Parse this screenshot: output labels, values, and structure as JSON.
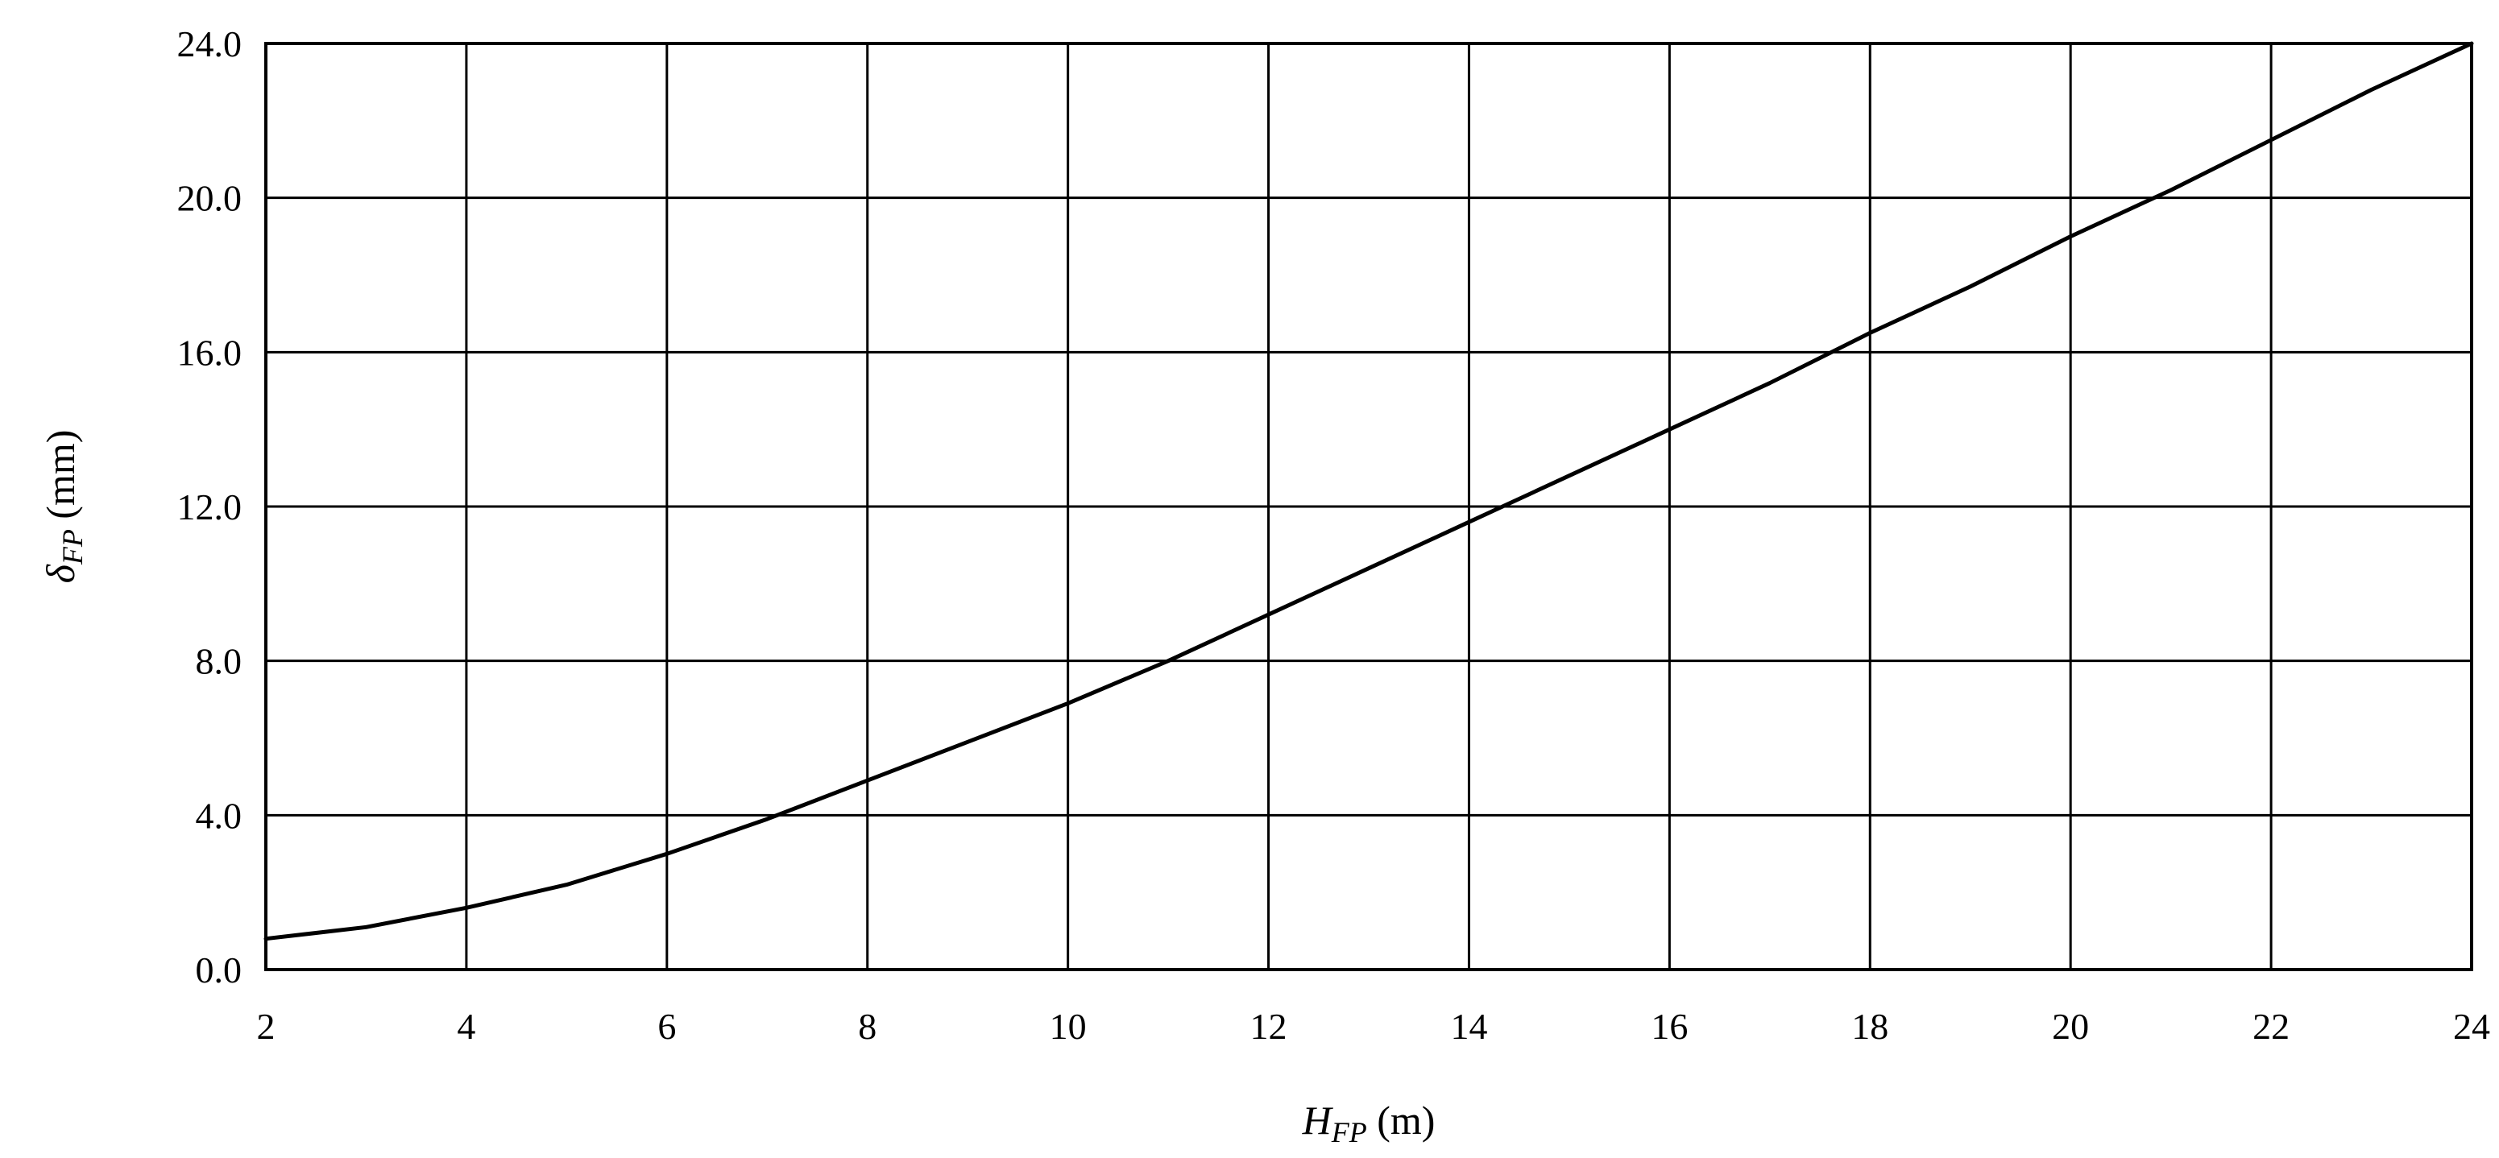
{
  "chart_data": {
    "type": "line",
    "title": "",
    "xlabel": {
      "main": "H",
      "sub": "FP",
      "unit": " (m)"
    },
    "ylabel": {
      "main": "δ",
      "sub": "FP",
      "unit": "  (mm)"
    },
    "xlim": [
      2,
      24
    ],
    "ylim": [
      0,
      24
    ],
    "x_ticks": [
      "2",
      "4",
      "6",
      "8",
      "10",
      "12",
      "14",
      "16",
      "18",
      "20",
      "22",
      "24"
    ],
    "y_ticks": [
      "0.0",
      "4.0",
      "8.0",
      "12.0",
      "16.0",
      "20.0",
      "24.0"
    ],
    "grid": true,
    "legend": "none",
    "series": [
      {
        "x": [
          2,
          3,
          4,
          5,
          6,
          7,
          8,
          9,
          10,
          11,
          12,
          13,
          14,
          15,
          16,
          17,
          18,
          19,
          20,
          21,
          22,
          23,
          24
        ],
        "values": [
          0.8,
          1.1,
          1.6,
          2.2,
          3.0,
          3.9,
          4.9,
          5.9,
          6.9,
          8.0,
          9.2,
          10.4,
          11.6,
          12.8,
          14.0,
          15.2,
          16.5,
          17.7,
          19.0,
          20.2,
          21.5,
          22.8,
          24.0
        ]
      }
    ]
  }
}
